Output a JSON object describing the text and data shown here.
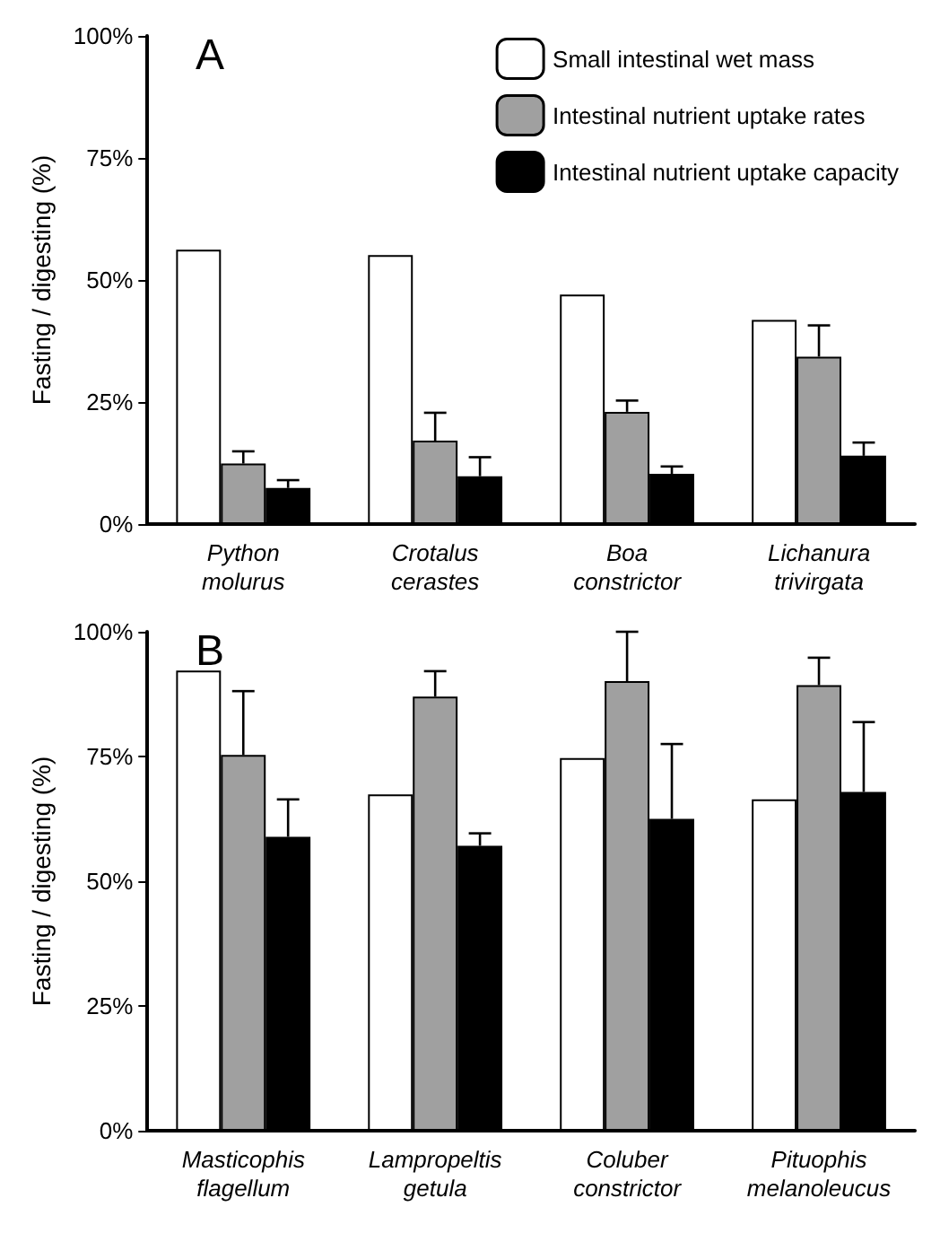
{
  "chart_data": [
    {
      "type": "bar",
      "title": "A",
      "ylabel": "Fasting / digesting (%)",
      "categories": [
        "Python molurus",
        "Crotalus cerastes",
        "Boa constrictor",
        "Lichanura trivirgata"
      ],
      "series": [
        {
          "name": "Small intestinal wet mass",
          "color": "#ffffff",
          "values": [
            56.2,
            55.1,
            47.0,
            41.8
          ]
        },
        {
          "name": "Intestinal nutrient uptake rates",
          "color": "#a0a0a0",
          "values": [
            12.4,
            17.1,
            23.0,
            34.3
          ],
          "errors": [
            [
              12.4,
              14.9
            ],
            [
              17.1,
              22.8
            ],
            [
              23.0,
              25.3
            ],
            [
              34.3,
              40.7
            ]
          ]
        },
        {
          "name": "Intestinal nutrient uptake capacity",
          "color": "#000000",
          "values": [
            7.4,
            9.8,
            10.3,
            14.0
          ],
          "errors": [
            [
              7.4,
              9.0
            ],
            [
              9.8,
              13.7
            ],
            [
              10.3,
              11.8
            ],
            [
              14.0,
              16.7
            ]
          ]
        }
      ],
      "ylim": [
        0,
        100
      ],
      "yticks": [
        {
          "value": 0,
          "label": "0%"
        },
        {
          "value": 25,
          "label": "25%"
        },
        {
          "value": 50,
          "label": "50%"
        },
        {
          "value": 75,
          "label": "75%"
        },
        {
          "value": 100,
          "label": "100%"
        }
      ],
      "grid": false,
      "legend": "top right"
    },
    {
      "type": "bar",
      "title": "B",
      "ylabel": "Fasting / digesting (%)",
      "categories": [
        "Masticophis flagellum",
        "Lampropeltis getula",
        "Coluber constrictor",
        "Pituophis melanoleucus"
      ],
      "series": [
        {
          "color": "#ffffff",
          "values": [
            92.2,
            67.4,
            74.7,
            66.4
          ]
        },
        {
          "color": "#a0a0a0",
          "values": [
            75.3,
            87.0,
            90.1,
            89.3
          ],
          "errors": [
            [
              75.3,
              88.1
            ],
            [
              87.0,
              92.1
            ],
            [
              90.1,
              100
            ],
            [
              89.3,
              94.8
            ]
          ]
        },
        {
          "color": "#000000",
          "values": [
            58.9,
            57.1,
            62.5,
            67.9
          ],
          "errors": [
            [
              58.9,
              66.4
            ],
            [
              57.1,
              59.6
            ],
            [
              62.5,
              77.5
            ],
            [
              67.9,
              81.9
            ]
          ]
        }
      ],
      "ylim": [
        0,
        100
      ],
      "yticks": [
        {
          "value": 0,
          "label": "0%"
        },
        {
          "value": 25,
          "label": "25%"
        },
        {
          "value": 50,
          "label": "50%"
        },
        {
          "value": 75,
          "label": "75%"
        },
        {
          "value": 100,
          "label": "100%"
        }
      ],
      "grid": false,
      "legend": false
    }
  ]
}
